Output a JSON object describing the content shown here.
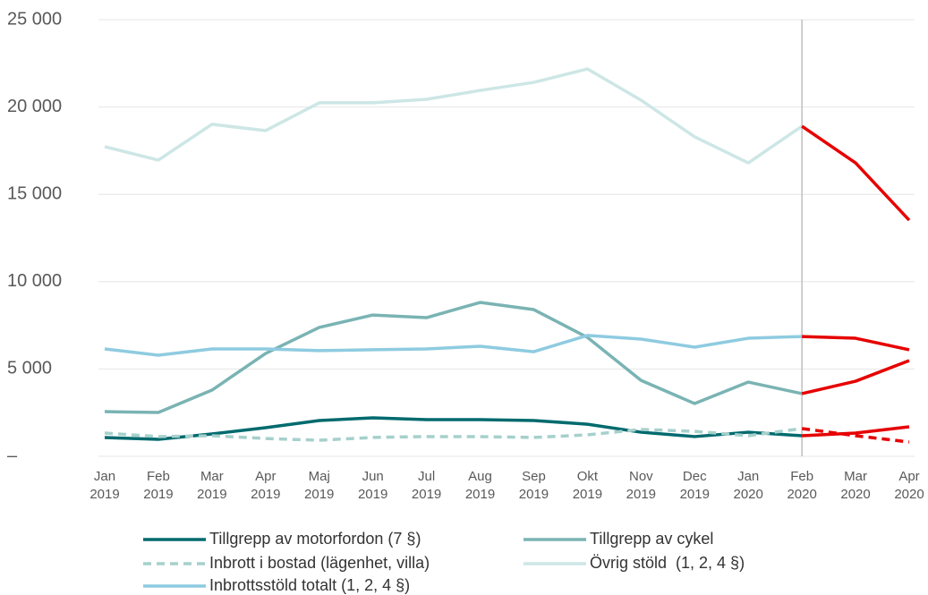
{
  "chart_data": {
    "type": "line",
    "categories": [
      "Jan 2019",
      "Feb 2019",
      "Mar 2019",
      "Apr 2019",
      "Maj 2019",
      "Jun 2019",
      "Jul 2019",
      "Aug 2019",
      "Sep 2019",
      "Okt 2019",
      "Nov 2019",
      "Dec 2019",
      "Jan 2020",
      "Feb 2020",
      "Mar 2020",
      "Apr 2020"
    ],
    "ylim": [
      0,
      25000
    ],
    "yticks": [
      {
        "value": 0,
        "label": "–"
      },
      {
        "value": 5000,
        "label": "5 000"
      },
      {
        "value": 10000,
        "label": "10 000"
      },
      {
        "value": 15000,
        "label": "15 000"
      },
      {
        "value": 20000,
        "label": "20 000"
      },
      {
        "value": 25000,
        "label": "25 000"
      }
    ],
    "grid": true,
    "highlight_start": 13,
    "highlight_color": "#e60000",
    "legend": "bottom",
    "series": [
      {
        "name": "Tillgrepp av motorfordon (7 §)",
        "color": "#006a6e",
        "dash": false,
        "values": [
          1076,
          973,
          1280,
          1640,
          2050,
          2200,
          2100,
          2100,
          2050,
          1840,
          1380,
          1130,
          1380,
          1180,
          1330,
          1690
        ]
      },
      {
        "name": "Tillgrepp av cykel",
        "color": "#7ab3b3",
        "dash": false,
        "values": [
          2560,
          2510,
          3790,
          5890,
          7380,
          8090,
          7940,
          8810,
          8400,
          6810,
          4350,
          3020,
          4250,
          3590,
          4300,
          5480
        ]
      },
      {
        "name": "Inbrott i bostad (lägenhet, villa)",
        "color": "#a6d0cc",
        "dash": true,
        "values": [
          1330,
          1130,
          1180,
          1020,
          920,
          1080,
          1130,
          1130,
          1080,
          1230,
          1540,
          1430,
          1180,
          1590,
          1180,
          820
        ]
      },
      {
        "name": "Övrig stöld  (1, 2, 4 §)",
        "color": "#cde6e6",
        "dash": false,
        "values": [
          17730,
          16960,
          19010,
          18650,
          20240,
          20240,
          20440,
          20950,
          21410,
          22180,
          20390,
          18290,
          16800,
          18900,
          16800,
          13520
        ]
      },
      {
        "name": "Inbrottsstöld totalt (1, 2, 4 §)",
        "color": "#8ecbe0",
        "dash": false,
        "values": [
          6150,
          5790,
          6150,
          6150,
          6050,
          6100,
          6150,
          6300,
          5990,
          6920,
          6710,
          6250,
          6760,
          6860,
          6760,
          6100
        ]
      }
    ]
  }
}
